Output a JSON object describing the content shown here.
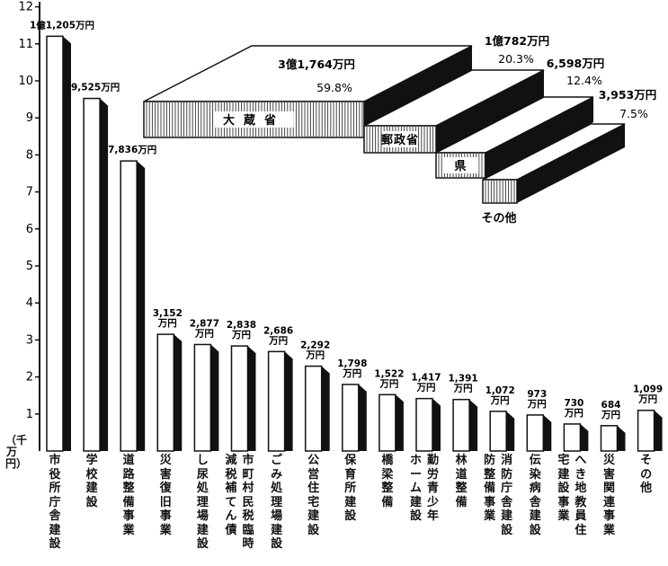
{
  "chart_data": {
    "type": "bar",
    "ylabel": "（千万円）",
    "ylim": [
      0,
      12
    ],
    "yticks": [
      "1",
      "2",
      "3",
      "4",
      "5",
      "6",
      "7",
      "8",
      "9",
      "10",
      "11",
      "12"
    ],
    "grid": false,
    "categories": [
      {
        "text": "市役所庁舎建設",
        "col2": ""
      },
      {
        "text": "学校建設",
        "col2": ""
      },
      {
        "text": "道路整備事業",
        "col2": ""
      },
      {
        "text": "災害復旧事業",
        "col2": ""
      },
      {
        "text": "し尿処理場建設",
        "col2": ""
      },
      {
        "text": "市町村民税臨時",
        "col2": "減税補てん債"
      },
      {
        "text": "ごみ処理場建設",
        "col2": ""
      },
      {
        "text": "公営住宅建設",
        "col2": ""
      },
      {
        "text": "保育所建設",
        "col2": ""
      },
      {
        "text": "橋梁整備",
        "col2": ""
      },
      {
        "text": "勤労青少年",
        "col2": "ホーム建設"
      },
      {
        "text": "林道整備",
        "col2": ""
      },
      {
        "text": "消防庁舎建設",
        "col2": "防整備事業"
      },
      {
        "text": "伝染病舎建設",
        "col2": ""
      },
      {
        "text": "へき地教員住",
        "col2": "宅建設事業"
      },
      {
        "text": "災害関連事業",
        "col2": ""
      },
      {
        "text": "その他",
        "col2": ""
      }
    ],
    "values": [
      11.205,
      9.525,
      7.836,
      3.152,
      2.877,
      2.838,
      2.686,
      2.292,
      1.798,
      1.522,
      1.417,
      1.391,
      1.072,
      0.973,
      0.73,
      0.684,
      1.099
    ],
    "value_labels": [
      [
        "1億1,205万円"
      ],
      [
        "9,525万円"
      ],
      [
        "7,836万円"
      ],
      [
        "3,152",
        "万円"
      ],
      [
        "2,877",
        "万円"
      ],
      [
        "2,838",
        "万円"
      ],
      [
        "2,686",
        "万円"
      ],
      [
        "2,292",
        "万円"
      ],
      [
        "1,798",
        "万円"
      ],
      [
        "1,522",
        "万円"
      ],
      [
        "1,417",
        "万円"
      ],
      [
        "1,391",
        "万円"
      ],
      [
        "1,072",
        "万円"
      ],
      [
        "973",
        "万円"
      ],
      [
        "730",
        "万円"
      ],
      [
        "684",
        "万円"
      ],
      [
        "1,099",
        "万円"
      ]
    ],
    "inset": {
      "type": "stacked-blocks",
      "items": [
        {
          "name": "大蔵省",
          "amount": "3億1,764万円",
          "percent": "59.8%"
        },
        {
          "name": "郵政省",
          "amount": "1億782万円",
          "percent": "20.3%"
        },
        {
          "name": "県",
          "amount": "6,598万円",
          "percent": "12.4%"
        },
        {
          "name": "その他",
          "amount": "3,953万円",
          "percent": "7.5%"
        }
      ]
    }
  }
}
